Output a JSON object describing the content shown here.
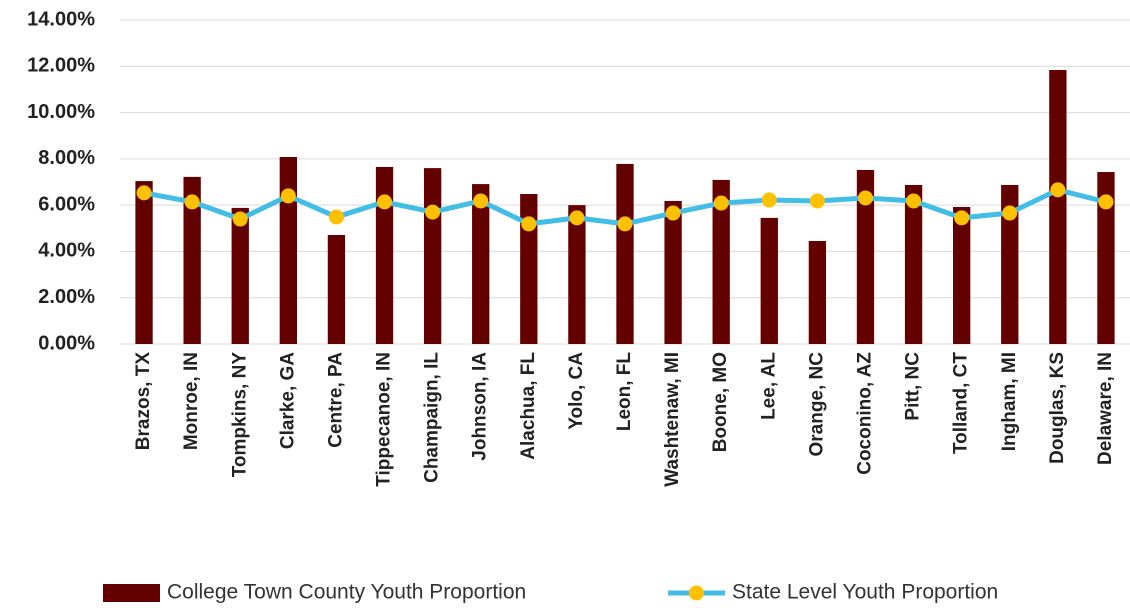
{
  "chart_data": {
    "type": "bar",
    "categories": [
      "Brazos, TX",
      "Monroe, IN",
      "Tompkins, NY",
      "Clarke, GA",
      "Centre, PA",
      "Tippecanoe, IN",
      "Champaign, IL",
      "Johnson, IA",
      "Alachua, FL",
      "Yolo, CA",
      "Leon, FL",
      "Washtenaw, MI",
      "Boone, MO",
      "Lee, AL",
      "Orange, NC",
      "Coconino, AZ",
      "Pitt, NC",
      "Tolland, CT",
      "Ingham, MI",
      "Douglas, KS",
      "Delaware, IN"
    ],
    "series": [
      {
        "name": "College Town County Youth Proportion",
        "type": "bar",
        "color": "#630000",
        "values": [
          7.04,
          7.22,
          5.88,
          8.08,
          4.71,
          7.65,
          7.6,
          6.91,
          6.48,
          6.0,
          7.78,
          6.18,
          7.09,
          5.45,
          4.45,
          7.52,
          6.87,
          5.92,
          6.87,
          11.84,
          7.43
        ]
      },
      {
        "name": "State Level Youth Proportion",
        "type": "line",
        "color": "#41bde6",
        "marker_color": "#ffc000",
        "values": [
          6.53,
          6.14,
          5.4,
          6.4,
          5.49,
          6.14,
          5.7,
          6.18,
          5.19,
          5.45,
          5.19,
          5.66,
          6.09,
          6.22,
          6.18,
          6.31,
          6.18,
          5.45,
          5.66,
          6.66,
          6.14
        ]
      }
    ],
    "ylim": [
      0,
      14
    ],
    "yticks": [
      {
        "value": 0,
        "label": "0.00%"
      },
      {
        "value": 2,
        "label": "2.00%"
      },
      {
        "value": 4,
        "label": "4.00%"
      },
      {
        "value": 6,
        "label": "6.00%"
      },
      {
        "value": 8,
        "label": "8.00%"
      },
      {
        "value": 10,
        "label": "10.00%"
      },
      {
        "value": 12,
        "label": "12.00%"
      },
      {
        "value": 14,
        "label": "14.00%"
      }
    ],
    "grid": true,
    "legend": "bottom"
  }
}
